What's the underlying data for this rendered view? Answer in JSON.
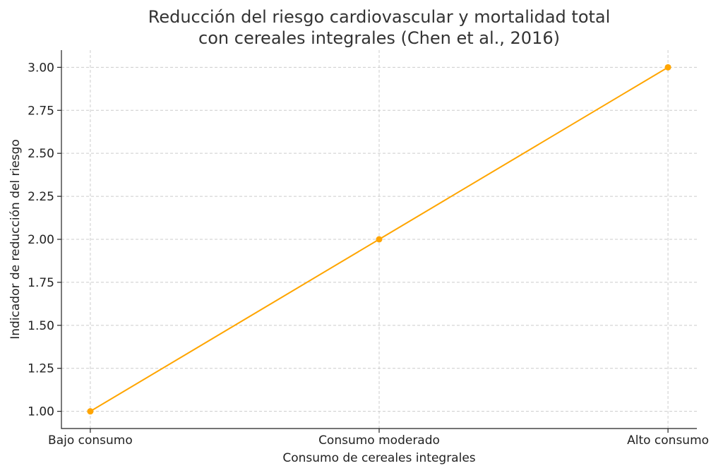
{
  "chart_data": {
    "type": "line",
    "title_lines": [
      "Reducción del riesgo cardiovascular y mortalidad total",
      "con cereales integrales (Chen et al., 2016)"
    ],
    "xlabel": "Consumo de cereales integrales",
    "ylabel": "Indicador de reducción del riesgo",
    "categories": [
      "Bajo consumo",
      "Consumo moderado",
      "Alto consumo"
    ],
    "series": [
      {
        "values": [
          1,
          2,
          3
        ],
        "color": "#FFA500",
        "marker": "circle"
      }
    ],
    "ylim": [
      0.9,
      3.1
    ],
    "yticks": [
      "1.00",
      "1.25",
      "1.50",
      "1.75",
      "2.00",
      "2.25",
      "2.50",
      "2.75",
      "3.00"
    ],
    "grid": true
  }
}
